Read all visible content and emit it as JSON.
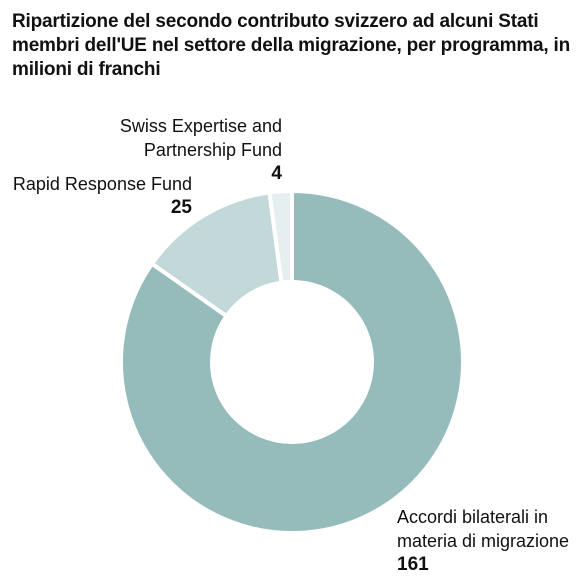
{
  "title": "Ripartizione del secondo contributo svizzero ad alcuni Stati membri dell'UE nel settore della migrazione, per programma, in milioni di franchi",
  "chart_data": {
    "type": "pie",
    "donut": true,
    "title": "Ripartizione del secondo contributo svizzero ad alcuni Stati membri dell'UE nel settore della migrazione, per programma, in milioni di franchi",
    "unit": "in milioni di franchi",
    "slices": [
      {
        "label": "Accordi bilaterali in materia di migrazione",
        "value": 161,
        "display_value": "161",
        "color": "#95bbbb"
      },
      {
        "label": "Rapid Response Fund",
        "value": 25,
        "display_value": "25",
        "color": "#c3d8d9"
      },
      {
        "label": "Swiss Expertise and Partnership Fund",
        "value": 4,
        "display_value": "4",
        "color": "#e6eff0"
      }
    ],
    "legend": "none",
    "separator_color": "#ffffff"
  }
}
